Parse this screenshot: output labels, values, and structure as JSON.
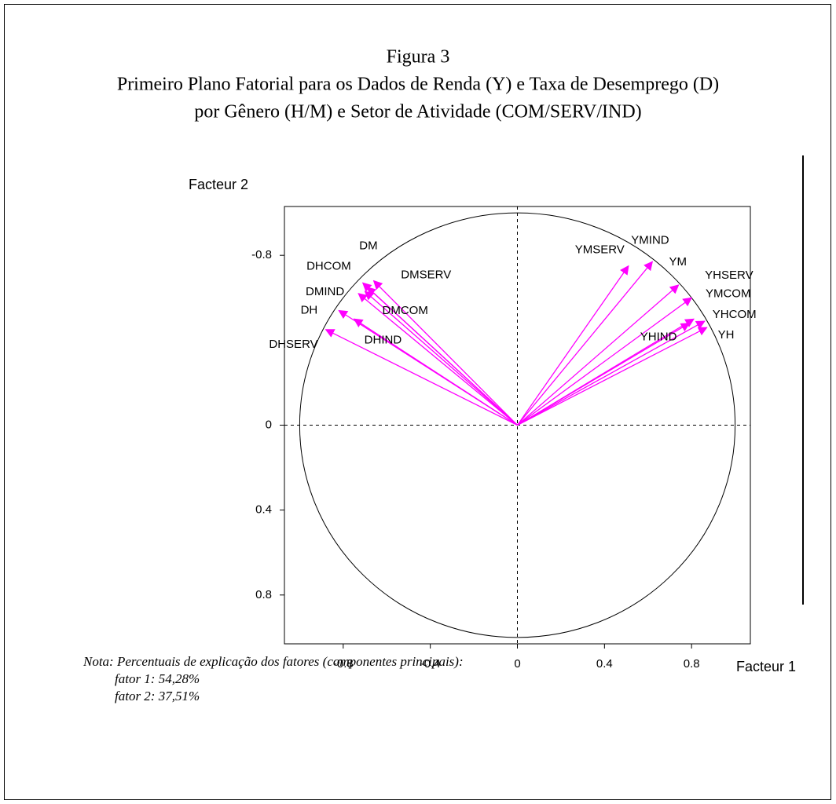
{
  "chart_data": {
    "type": "vector",
    "title": "Figura 3",
    "subtitle": [
      "Primeiro Plano Fatorial para os Dados de Renda (Y) e Taxa de Desemprego (D)",
      "por Gênero (H/M) e Setor de Atividade (COM/SERV/IND)"
    ],
    "x_label": "Facteur 1",
    "y_label": "Facteur 2",
    "xlim": [
      -1.07,
      1.07
    ],
    "ylim": [
      -1.03,
      1.03
    ],
    "y_inverted": true,
    "xticks": [
      -0.8,
      -0.4,
      0,
      0.4,
      0.8
    ],
    "yticks": [
      -0.8,
      0,
      0.4,
      0.8
    ],
    "unit_circle": true,
    "zero_lines": true,
    "series": [
      {
        "color": "#ff00ff",
        "names": [
          "YMSERV",
          "YMIND",
          "YM",
          "YHSERV",
          "YMCOM",
          "YHCOM",
          "YH",
          "YHIND",
          "DHSERV",
          "DH",
          "DHIND",
          "DMIND",
          "DHCOM",
          "DM",
          "DMSERV",
          "DMCOM"
        ],
        "x": [
          0.51,
          0.62,
          0.74,
          0.8,
          0.81,
          0.86,
          0.87,
          0.79,
          -0.88,
          -0.82,
          -0.75,
          -0.73,
          -0.71,
          -0.66,
          -0.69,
          -0.7
        ],
        "values": [
          -0.75,
          -0.77,
          -0.66,
          -0.6,
          -0.5,
          -0.49,
          -0.46,
          -0.48,
          -0.45,
          -0.54,
          -0.5,
          -0.62,
          -0.67,
          -0.68,
          -0.65,
          -0.63
        ]
      }
    ]
  },
  "note": [
    "Nota: Percentuais de explicação dos fatores (componentes principais):",
    "fator 1: 54,28%",
    "fator 2: 37,51%"
  ]
}
